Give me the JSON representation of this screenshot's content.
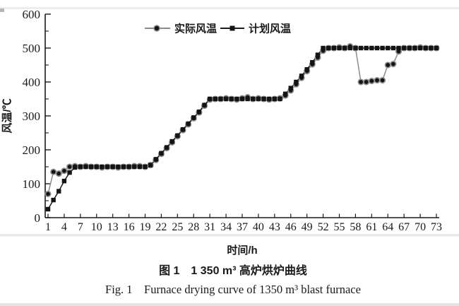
{
  "figure": {
    "y_axis_title": "风温/℃",
    "x_axis_title": "时间/h",
    "caption_zh": "图 1　1 350 m³ 高炉烘炉曲线",
    "caption_en": "Fig. 1　Furnace drying curve of 1350 m³ blast furnace"
  },
  "legend": [
    {
      "label": "实际风温",
      "marker": "circle"
    },
    {
      "label": "计划风温",
      "marker": "square"
    }
  ],
  "colors": {
    "axis": "#1a1a1a",
    "actual_line": "#8c8c8c",
    "planned_line": "#1a1a1a",
    "marker_fill": "#141414",
    "circle_ring": "#8e8e8e",
    "scan_band": "#e9e9e9"
  },
  "chart_data": {
    "type": "line",
    "title": "",
    "xlabel": "时间/h",
    "ylabel": "风温/℃",
    "xlim": [
      1,
      73
    ],
    "ylim": [
      0,
      600
    ],
    "x_ticks": [
      1,
      4,
      7,
      10,
      13,
      16,
      19,
      22,
      25,
      28,
      31,
      34,
      37,
      40,
      43,
      46,
      49,
      52,
      55,
      58,
      61,
      64,
      67,
      70,
      73
    ],
    "y_ticks": [
      0,
      100,
      200,
      300,
      400,
      500,
      600
    ],
    "y_minor_step": 50,
    "grid": false,
    "legend_position": "top-center-inside",
    "x": [
      1,
      2,
      3,
      4,
      5,
      6,
      7,
      8,
      9,
      10,
      11,
      12,
      13,
      14,
      15,
      16,
      17,
      18,
      19,
      20,
      21,
      22,
      23,
      24,
      25,
      26,
      27,
      28,
      29,
      30,
      31,
      32,
      33,
      34,
      35,
      36,
      37,
      38,
      39,
      40,
      41,
      42,
      43,
      44,
      45,
      46,
      47,
      48,
      49,
      50,
      51,
      52,
      53,
      54,
      55,
      56,
      57,
      58,
      59,
      60,
      61,
      62,
      63,
      64,
      65,
      66,
      67,
      68,
      69,
      70,
      71,
      72,
      73
    ],
    "series": [
      {
        "name": "实际风温",
        "marker": "circle",
        "line_color": "#8c8c8c",
        "values": [
          70,
          135,
          130,
          138,
          150,
          152,
          150,
          152,
          150,
          150,
          148,
          150,
          150,
          148,
          150,
          150,
          152,
          152,
          150,
          155,
          170,
          188,
          205,
          222,
          240,
          258,
          275,
          293,
          310,
          330,
          348,
          350,
          350,
          352,
          350,
          348,
          352,
          355,
          350,
          352,
          350,
          348,
          350,
          352,
          360,
          375,
          393,
          412,
          432,
          452,
          472,
          492,
          500,
          500,
          502,
          500,
          505,
          500,
          400,
          400,
          403,
          405,
          405,
          450,
          453,
          490,
          500,
          500,
          500,
          502,
          500,
          500,
          500
        ]
      },
      {
        "name": "计划风温",
        "marker": "square",
        "line_color": "#1a1a1a",
        "values": [
          25,
          52,
          78,
          108,
          133,
          148,
          150,
          150,
          150,
          150,
          150,
          150,
          150,
          150,
          150,
          150,
          150,
          150,
          150,
          155,
          172,
          190,
          207,
          225,
          242,
          260,
          277,
          295,
          312,
          332,
          350,
          350,
          350,
          350,
          350,
          350,
          350,
          350,
          350,
          350,
          350,
          350,
          350,
          350,
          365,
          382,
          400,
          418,
          437,
          458,
          480,
          500,
          500,
          500,
          500,
          500,
          500,
          500,
          500,
          500,
          500,
          500,
          500,
          500,
          500,
          500,
          500,
          500,
          500,
          500,
          500,
          500,
          500
        ]
      }
    ]
  }
}
